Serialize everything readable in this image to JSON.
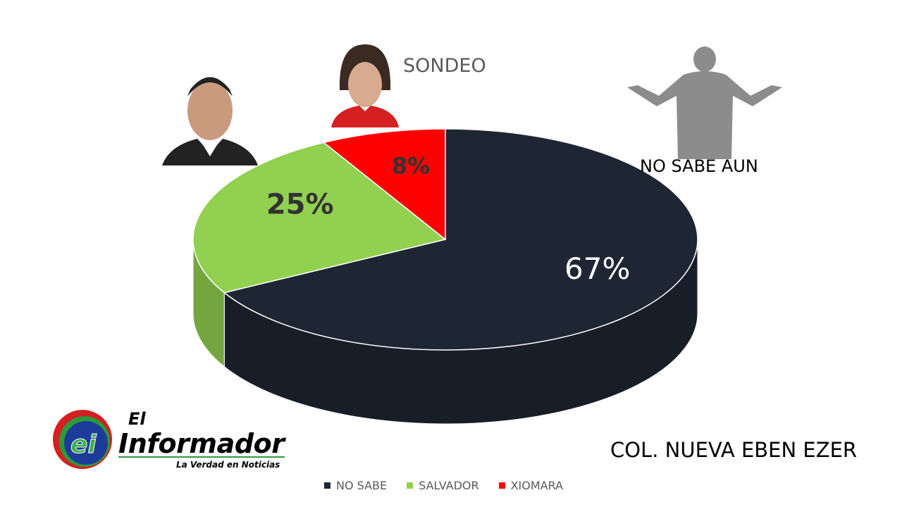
{
  "chart_data": {
    "type": "pie",
    "title": "SONDEO",
    "slices": [
      {
        "name": "NO SABE",
        "value": 67,
        "label": "67%",
        "color": "#1f2633",
        "label_color": "#ffffff"
      },
      {
        "name": "SALVADOR",
        "value": 25,
        "label": "25%",
        "color": "#92d050",
        "label_color": "#333333"
      },
      {
        "name": "XIOMARA",
        "value": 8,
        "label": "8%",
        "color": "#ff0000",
        "label_color": "#333333"
      }
    ],
    "style": "3d",
    "legend_position": "bottom"
  },
  "annotations": {
    "no_sabe_caption": "NO SABE AUN",
    "location": "COL. NUEVA EBEN EZER"
  },
  "logo": {
    "text": "El Informador",
    "tagline": "La Verdad en Noticias",
    "mark": "ei"
  }
}
